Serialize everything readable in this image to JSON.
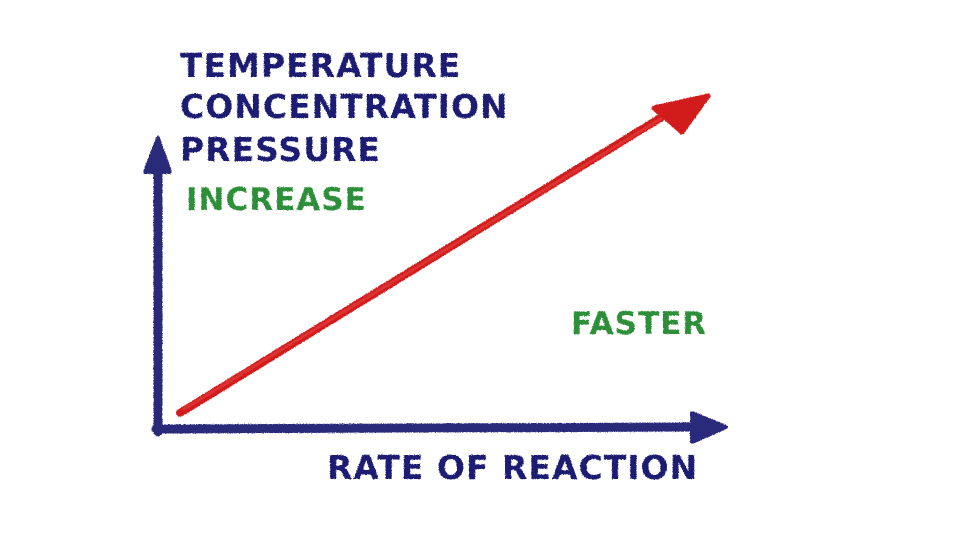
{
  "diagram": {
    "y_axis_labels": {
      "line1": "TEMPERATURE",
      "line2": "CONCENTRATION",
      "line3": "PRESSURE",
      "increase": "INCREASE"
    },
    "x_axis_label": "RATE OF REACTION",
    "trend_label": "FASTER",
    "colors": {
      "axis": "#2a2a7a",
      "label": "#1f1f73",
      "green": "#2f8f3a",
      "arrow": "#d21c1c"
    }
  }
}
